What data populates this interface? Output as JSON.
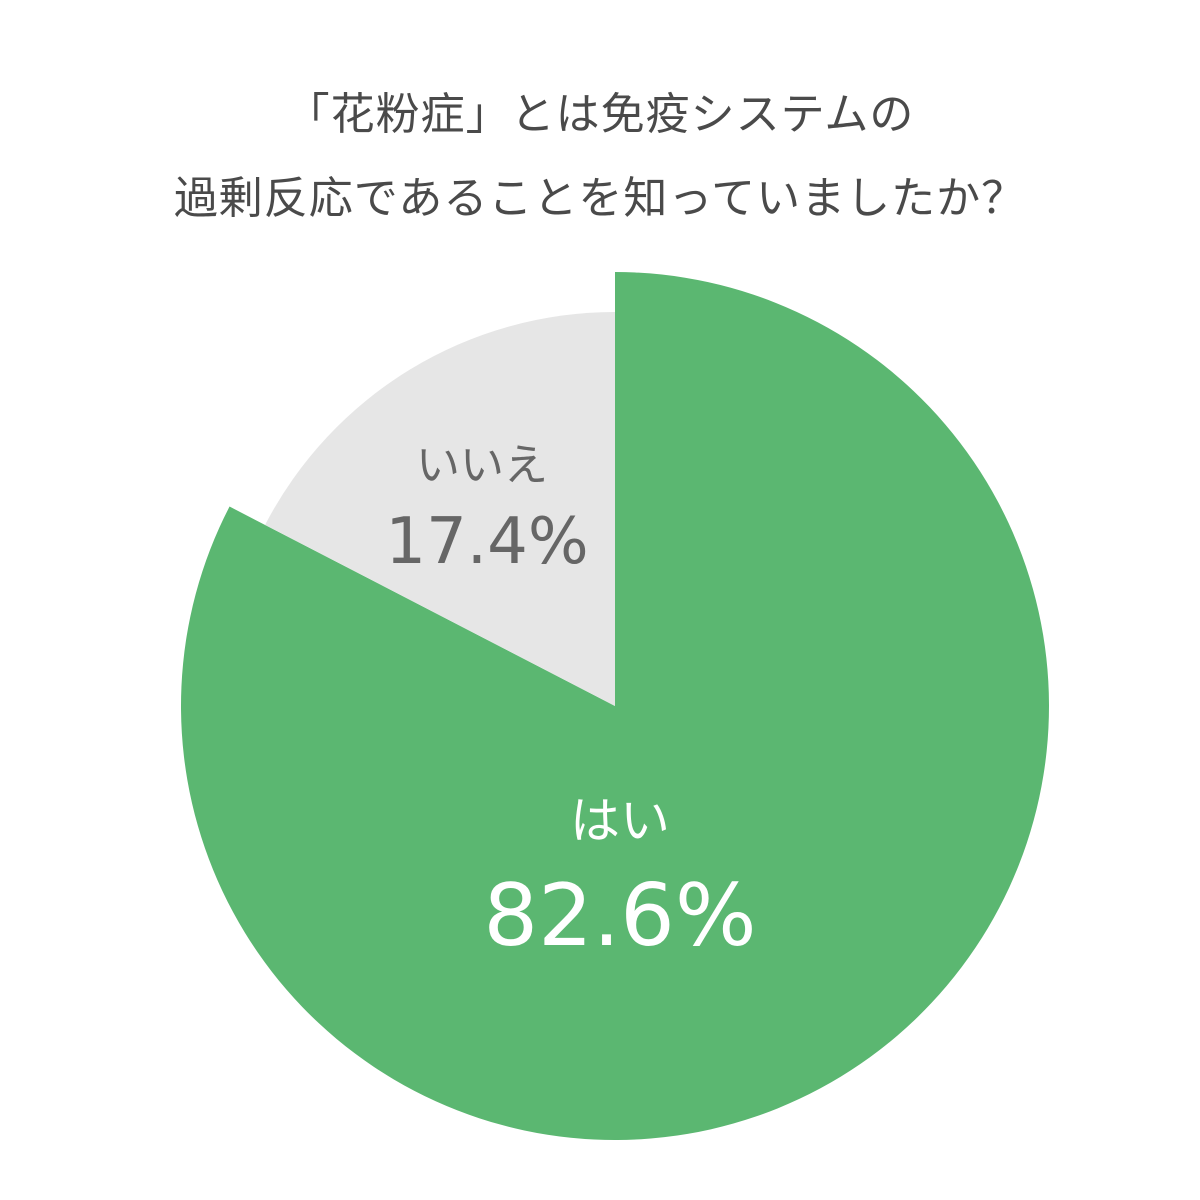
{
  "chart_data": {
    "type": "pie",
    "title_lines": [
      "「花粉症」とは免疫システムの",
      "過剰反応であることを知っていましたか？"
    ],
    "start": "top",
    "direction": "clockwise",
    "slices": [
      {
        "label": "はい",
        "value": 82.6,
        "value_label": "82.6%",
        "color": "#5bb771",
        "text_color": "#ffffff"
      },
      {
        "label": "いいえ",
        "value": 17.4,
        "value_label": "17.4%",
        "color": "#e6e6e6",
        "text_color": "#666666"
      }
    ]
  }
}
